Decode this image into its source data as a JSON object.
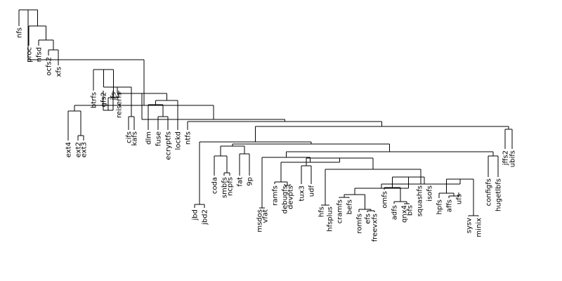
{
  "tree": {
    "type": "dendrogram",
    "orientation": "top-down",
    "leaves": [
      "nfs",
      "proc",
      "nfsd",
      "ocfs2",
      "xfs",
      "ext4",
      "ext2",
      "ext3",
      "btrfs",
      "gfs2",
      "jfs",
      "reiserfs",
      "cifs",
      "kafs",
      "dlm",
      "fuse",
      "ecryptfs",
      "lockd",
      "ntfs",
      "jbd",
      "jbd2",
      "coda",
      "smbfs",
      "ncpfs",
      "fat",
      "9p",
      "msdos",
      "vfat",
      "ramfs",
      "debugfs",
      "devpts",
      "tux3",
      "udf",
      "hfs",
      "hfsplus",
      "cramfs",
      "befs",
      "romfs",
      "efs",
      "freevxfs",
      "omfs",
      "adfs",
      "qnx4",
      "bfs",
      "squashfs",
      "isofs",
      "hpfs",
      "affs",
      "ufs",
      "sysv",
      "minix",
      "configfs",
      "hugetlbfs",
      "jffs2",
      "ubifs"
    ],
    "style": {
      "line_color": "#000000",
      "label_color": "#000000",
      "background": "#ffffff"
    }
  }
}
